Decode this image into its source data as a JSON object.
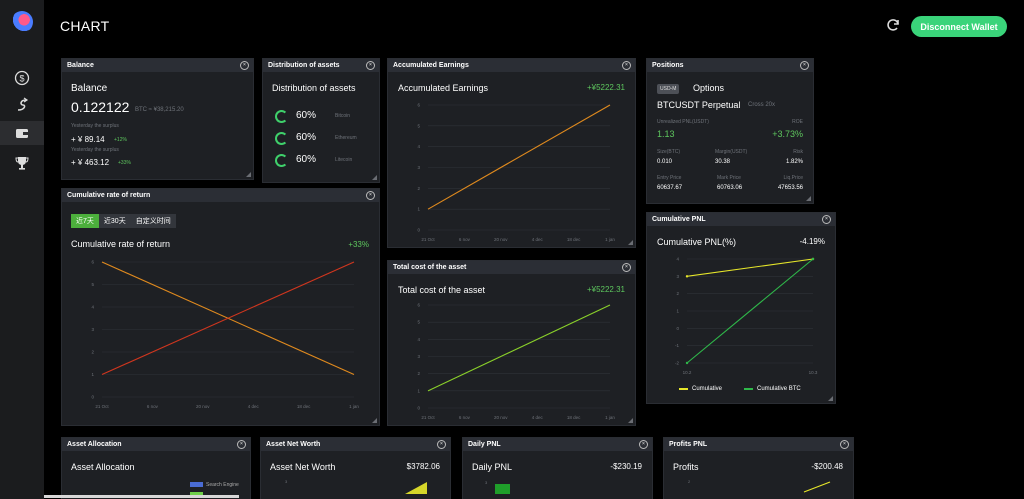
{
  "header": {
    "title": "CHART",
    "disconnect_label": "Disconnect Wallet"
  },
  "sidebar": {
    "items": [
      "dollar-icon",
      "exchange-icon",
      "wallet-icon",
      "trophy-icon"
    ]
  },
  "balance": {
    "panel_title": "Balance",
    "title": "Balance",
    "value": "0.122122",
    "btc_note": "BTC ≈ ¥38,215.20",
    "yesterday1": "Yesterday the surplus",
    "val1": "+ ¥ 89.14",
    "pct1": "+12%",
    "yesterday2": "Yesterday the surplus",
    "val2": "+ ¥ 463.12",
    "pct2": "+33%"
  },
  "distribution": {
    "panel_title": "Distribution of assets",
    "title": "Distribution of assets",
    "items": [
      {
        "pct": "60%",
        "name": "Bitcoin"
      },
      {
        "pct": "60%",
        "name": "Ethereum"
      },
      {
        "pct": "60%",
        "name": "Litecoin"
      }
    ]
  },
  "accumulated": {
    "panel_title": "Accumulated Earnings",
    "title": "Accumulated Earnings",
    "value": "+¥5222.31"
  },
  "positions": {
    "panel_title": "Positions",
    "badge": "USD-M",
    "options": "Options",
    "symbol": "BTCUSDT Perpetual",
    "cross": "Cross 20x",
    "unrealized_label": "Unrealized PNL(USDT)",
    "roe_label": "ROE",
    "unrealized": "1.13",
    "roe": "+3.73%",
    "size_label": "Size(BTC)",
    "margin_label": "Margin(USDT)",
    "risk_label": "Risk",
    "size": "0.010",
    "margin": "30.38",
    "risk": "1.82%",
    "entry_label": "Entry Price",
    "mark_label": "Mark Price",
    "liq_label": "Liq.Price",
    "entry": "60637.67",
    "mark": "60763.06",
    "liq": "47653.56"
  },
  "cumulative_rate": {
    "panel_title": "Cumulative rate of return",
    "tabs": [
      "近7天",
      "近30天",
      "自定义时间"
    ],
    "title": "Cumulative rate of return",
    "value": "+33%"
  },
  "total_cost": {
    "panel_title": "Total cost of the asset",
    "title": "Total cost of the asset",
    "value": "+¥5222.31"
  },
  "cumulative_pnl": {
    "panel_title": "Cumulative PNL",
    "title": "Cumulative PNL(%)",
    "value": "-4.19%",
    "legend": [
      "Cumulative",
      "Cumulative BTC"
    ]
  },
  "asset_allocation": {
    "panel_title": "Asset Allocation",
    "title": "Asset Allocation",
    "legend": "Search Engine"
  },
  "asset_net_worth": {
    "panel_title": "Asset Net Worth",
    "title": "Asset Net Worth",
    "value": "$3782.06"
  },
  "daily_pnl": {
    "panel_title": "Daily PNL",
    "title": "Daily PNL",
    "value": "-$230.19"
  },
  "profits_pnl": {
    "panel_title": "Profits PNL",
    "title": "Profits",
    "value": "-$200.48"
  },
  "chart_data": [
    {
      "type": "line",
      "name": "accumulated-earnings",
      "x": [
        "21 Oct",
        "6 nov",
        "20 nov",
        "4 dec",
        "18 dec",
        "1 jan"
      ],
      "ylim": [
        0,
        6
      ],
      "yticks": [
        0,
        1,
        2,
        3,
        4,
        5,
        6
      ],
      "series": [
        {
          "points": [
            [
              0,
              1
            ],
            [
              5,
              6
            ]
          ],
          "color": "#e08a1e"
        }
      ]
    },
    {
      "type": "line",
      "name": "cumulative-rate",
      "x": [
        "21 Oct",
        "6 nov",
        "20 nov",
        "4 dec",
        "18 dec",
        "1 jan"
      ],
      "ylim": [
        0,
        6
      ],
      "yticks": [
        0,
        1,
        2,
        3,
        4,
        5,
        6
      ],
      "series": [
        {
          "points": [
            [
              0,
              6
            ],
            [
              5,
              1
            ]
          ],
          "color": "#e08a1e"
        },
        {
          "points": [
            [
              0,
              1
            ],
            [
              5,
              6
            ]
          ],
          "color": "#d0361e"
        }
      ]
    },
    {
      "type": "line",
      "name": "total-cost",
      "x": [
        "21 Oct",
        "6 nov",
        "20 nov",
        "4 dec",
        "18 dec",
        "1 jan"
      ],
      "ylim": [
        0,
        6
      ],
      "yticks": [
        0,
        1,
        2,
        3,
        4,
        5,
        6
      ],
      "series": [
        {
          "points": [
            [
              0,
              1
            ],
            [
              5,
              6
            ]
          ],
          "color": "#8ad02a"
        }
      ]
    },
    {
      "type": "line",
      "name": "cumulative-pnl",
      "x": [
        "10.2",
        "10.3"
      ],
      "ylim": [
        -2,
        4
      ],
      "yticks": [
        -2,
        -1,
        0,
        1,
        2,
        3,
        4
      ],
      "series": [
        {
          "points": [
            [
              0,
              3
            ],
            [
              1,
              4
            ]
          ],
          "color": "#e6e62a"
        },
        {
          "points": [
            [
              0,
              -2
            ],
            [
              1,
              4
            ]
          ],
          "color": "#2fb84a"
        }
      ]
    }
  ]
}
